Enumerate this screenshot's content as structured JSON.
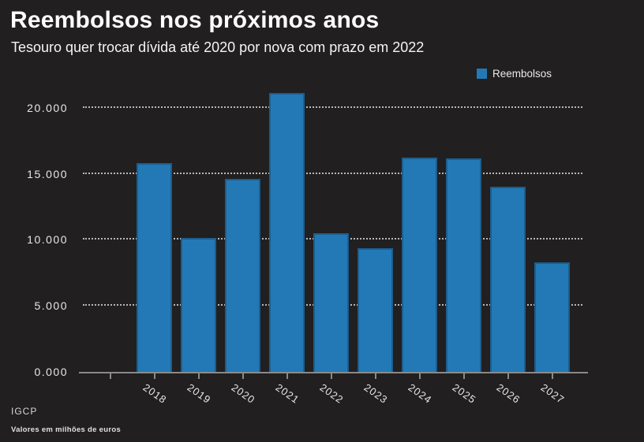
{
  "header": {
    "title": "Reembolsos nos próximos anos",
    "subtitle": "Tesouro quer trocar dívida até 2020 por nova com prazo em 2022"
  },
  "legend": {
    "label": "Reembolsos",
    "swatch_color": "#2379b6"
  },
  "footer": {
    "source": "IGCP",
    "note": "Valores em milhões de euros"
  },
  "colors": {
    "background": "#211f20",
    "bar_fill": "#2379b6",
    "bar_edge": "#1b5e8e",
    "gridline": "#b9b9b9",
    "axis_line": "#8a8a8a",
    "text": "#ffffff"
  },
  "chart_data": {
    "type": "bar",
    "title": "Reembolsos nos próximos anos",
    "subtitle": "Tesouro quer trocar dívida até 2020 por nova com prazo em 2022",
    "source": "IGCP",
    "unit": "milhões de euros",
    "categories": [
      "2018",
      "2019",
      "2020",
      "2021",
      "2022",
      "2023",
      "2024",
      "2025",
      "2026",
      "2027"
    ],
    "series": [
      {
        "name": "Reembolsos",
        "values": [
          15800,
          10150,
          14600,
          21100,
          10500,
          9350,
          16250,
          16200,
          14000,
          8300
        ]
      }
    ],
    "xlabel": "",
    "ylabel": "",
    "ylim": [
      0,
      21600
    ],
    "yticks": [
      {
        "label": "0.000",
        "value": 0
      },
      {
        "label": "5.000",
        "value": 5000
      },
      {
        "label": "10.000",
        "value": 10000
      },
      {
        "label": "15.000",
        "value": 15000
      },
      {
        "label": "20.000",
        "value": 20000
      }
    ],
    "grid": "horizontal-dotted",
    "legend_position": "top-right",
    "x_tick_label_rotation_deg": -35
  }
}
